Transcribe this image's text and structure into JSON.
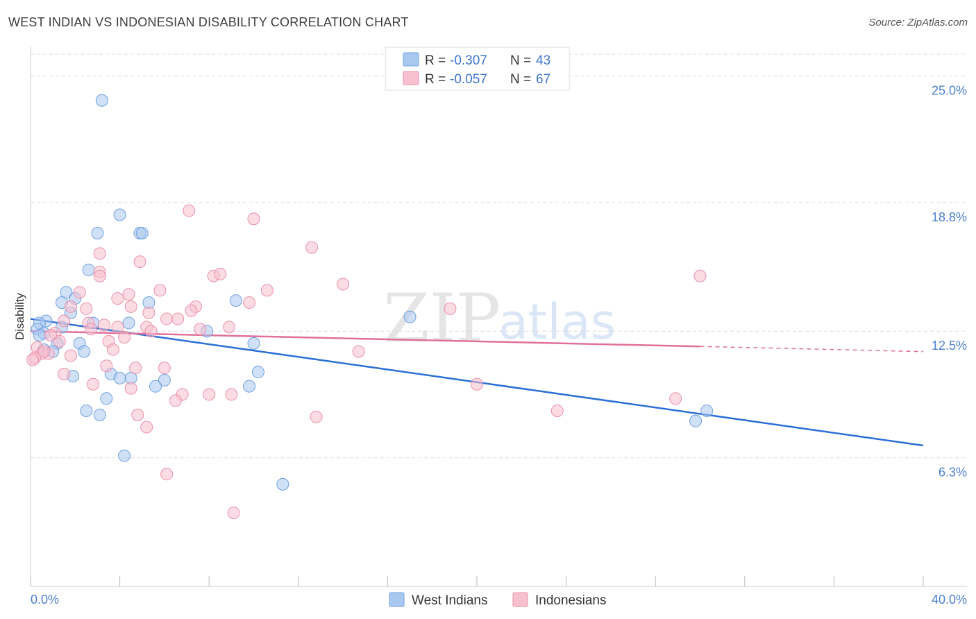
{
  "title": "WEST INDIAN VS INDONESIAN DISABILITY CORRELATION CHART",
  "source": "Source: ZipAtlas.com",
  "watermark": {
    "part1": "ZIP",
    "part2": "atlas"
  },
  "legend": {
    "r_label": "R =",
    "n_label": "N =",
    "rows": [
      {
        "r": "-0.307",
        "n": "43",
        "color": "#a9c8f0",
        "stroke": "#6f9fde"
      },
      {
        "r": "-0.057",
        "n": "67",
        "color": "#f7c0d0",
        "stroke": "#e890aa"
      }
    ]
  },
  "bottom_legend": [
    "West Indians",
    "Indonesians"
  ],
  "chart_data": {
    "type": "scatter",
    "title": "WEST INDIAN VS INDONESIAN DISABILITY CORRELATION CHART",
    "xlabel": "",
    "ylabel": "Disability",
    "xlim": [
      0,
      40
    ],
    "ylim": [
      0,
      26
    ],
    "x_tick_labels": [
      "0.0%",
      "40.0%"
    ],
    "y_ticks": [
      6.3,
      12.5,
      18.8,
      25.0
    ],
    "y_tick_labels": [
      "6.3%",
      "12.5%",
      "18.8%",
      "25.0%"
    ],
    "series": [
      {
        "name": "West Indians",
        "color": "#a9c8f0",
        "stroke": "#6f9fde",
        "trend_color": "#2a6fd6",
        "trend": {
          "x0": 0,
          "y0": 13.1,
          "x1": 40,
          "y1": 6.9
        },
        "points": [
          [
            3.2,
            23.8
          ],
          [
            4.0,
            18.2
          ],
          [
            3.0,
            17.3
          ],
          [
            4.9,
            17.3
          ],
          [
            5.0,
            17.3
          ],
          [
            2.6,
            15.5
          ],
          [
            1.6,
            14.4
          ],
          [
            2.0,
            14.1
          ],
          [
            1.4,
            13.9
          ],
          [
            5.3,
            13.9
          ],
          [
            9.2,
            14.0
          ],
          [
            1.8,
            13.4
          ],
          [
            0.7,
            13.0
          ],
          [
            0.4,
            12.9
          ],
          [
            0.3,
            12.6
          ],
          [
            0.6,
            12.4
          ],
          [
            1.4,
            12.7
          ],
          [
            2.8,
            12.9
          ],
          [
            4.4,
            12.9
          ],
          [
            7.9,
            12.5
          ],
          [
            17.0,
            13.2
          ],
          [
            0.4,
            12.3
          ],
          [
            2.2,
            11.9
          ],
          [
            1.2,
            11.9
          ],
          [
            0.6,
            11.6
          ],
          [
            1.0,
            11.5
          ],
          [
            2.4,
            11.5
          ],
          [
            10.0,
            11.9
          ],
          [
            1.9,
            10.3
          ],
          [
            3.6,
            10.4
          ],
          [
            4.0,
            10.2
          ],
          [
            4.5,
            10.2
          ],
          [
            6.0,
            10.1
          ],
          [
            10.2,
            10.5
          ],
          [
            5.6,
            9.8
          ],
          [
            9.8,
            9.8
          ],
          [
            3.4,
            9.2
          ],
          [
            2.5,
            8.6
          ],
          [
            3.1,
            8.4
          ],
          [
            4.2,
            6.4
          ],
          [
            11.3,
            5.0
          ],
          [
            29.8,
            8.1
          ],
          [
            30.3,
            8.6
          ]
        ]
      },
      {
        "name": "Indonesians",
        "color": "#f7c0d0",
        "stroke": "#e890aa",
        "trend_color": "#e0709a",
        "trend": {
          "x0": 0,
          "y0": 12.5,
          "x1": 40,
          "y1": 11.5
        },
        "trend_solid_end_x": 30,
        "points": [
          [
            7.1,
            18.4
          ],
          [
            10.0,
            18.0
          ],
          [
            12.6,
            16.6
          ],
          [
            3.1,
            16.3
          ],
          [
            4.9,
            15.9
          ],
          [
            30.0,
            15.2
          ],
          [
            3.1,
            15.4
          ],
          [
            3.1,
            15.2
          ],
          [
            8.2,
            15.2
          ],
          [
            8.5,
            15.3
          ],
          [
            14.0,
            14.8
          ],
          [
            5.8,
            14.5
          ],
          [
            10.6,
            14.5
          ],
          [
            2.2,
            14.4
          ],
          [
            4.4,
            14.3
          ],
          [
            3.9,
            14.1
          ],
          [
            9.8,
            13.9
          ],
          [
            7.4,
            13.7
          ],
          [
            1.8,
            13.7
          ],
          [
            2.5,
            13.6
          ],
          [
            4.5,
            13.7
          ],
          [
            5.3,
            13.4
          ],
          [
            7.2,
            13.5
          ],
          [
            18.8,
            13.6
          ],
          [
            6.1,
            13.1
          ],
          [
            6.6,
            13.1
          ],
          [
            1.5,
            13.0
          ],
          [
            2.6,
            12.9
          ],
          [
            3.3,
            12.8
          ],
          [
            3.9,
            12.7
          ],
          [
            5.2,
            12.7
          ],
          [
            8.9,
            12.7
          ],
          [
            7.6,
            12.6
          ],
          [
            2.7,
            12.6
          ],
          [
            1.1,
            12.4
          ],
          [
            5.4,
            12.5
          ],
          [
            4.2,
            12.2
          ],
          [
            0.9,
            12.3
          ],
          [
            3.5,
            12.0
          ],
          [
            1.3,
            12.0
          ],
          [
            3.7,
            11.6
          ],
          [
            0.3,
            11.7
          ],
          [
            0.5,
            11.4
          ],
          [
            0.8,
            11.4
          ],
          [
            1.8,
            11.3
          ],
          [
            0.2,
            11.2
          ],
          [
            0.1,
            11.1
          ],
          [
            14.7,
            11.5
          ],
          [
            3.4,
            10.8
          ],
          [
            6.0,
            10.7
          ],
          [
            4.7,
            10.7
          ],
          [
            1.5,
            10.4
          ],
          [
            2.8,
            9.9
          ],
          [
            4.5,
            9.7
          ],
          [
            6.8,
            9.4
          ],
          [
            8.0,
            9.4
          ],
          [
            9.0,
            9.4
          ],
          [
            6.5,
            9.1
          ],
          [
            20.0,
            9.9
          ],
          [
            28.9,
            9.2
          ],
          [
            23.6,
            8.6
          ],
          [
            4.8,
            8.4
          ],
          [
            12.8,
            8.3
          ],
          [
            5.2,
            7.8
          ],
          [
            6.1,
            5.5
          ],
          [
            9.1,
            3.6
          ],
          [
            0.6,
            11.5
          ]
        ]
      }
    ]
  }
}
